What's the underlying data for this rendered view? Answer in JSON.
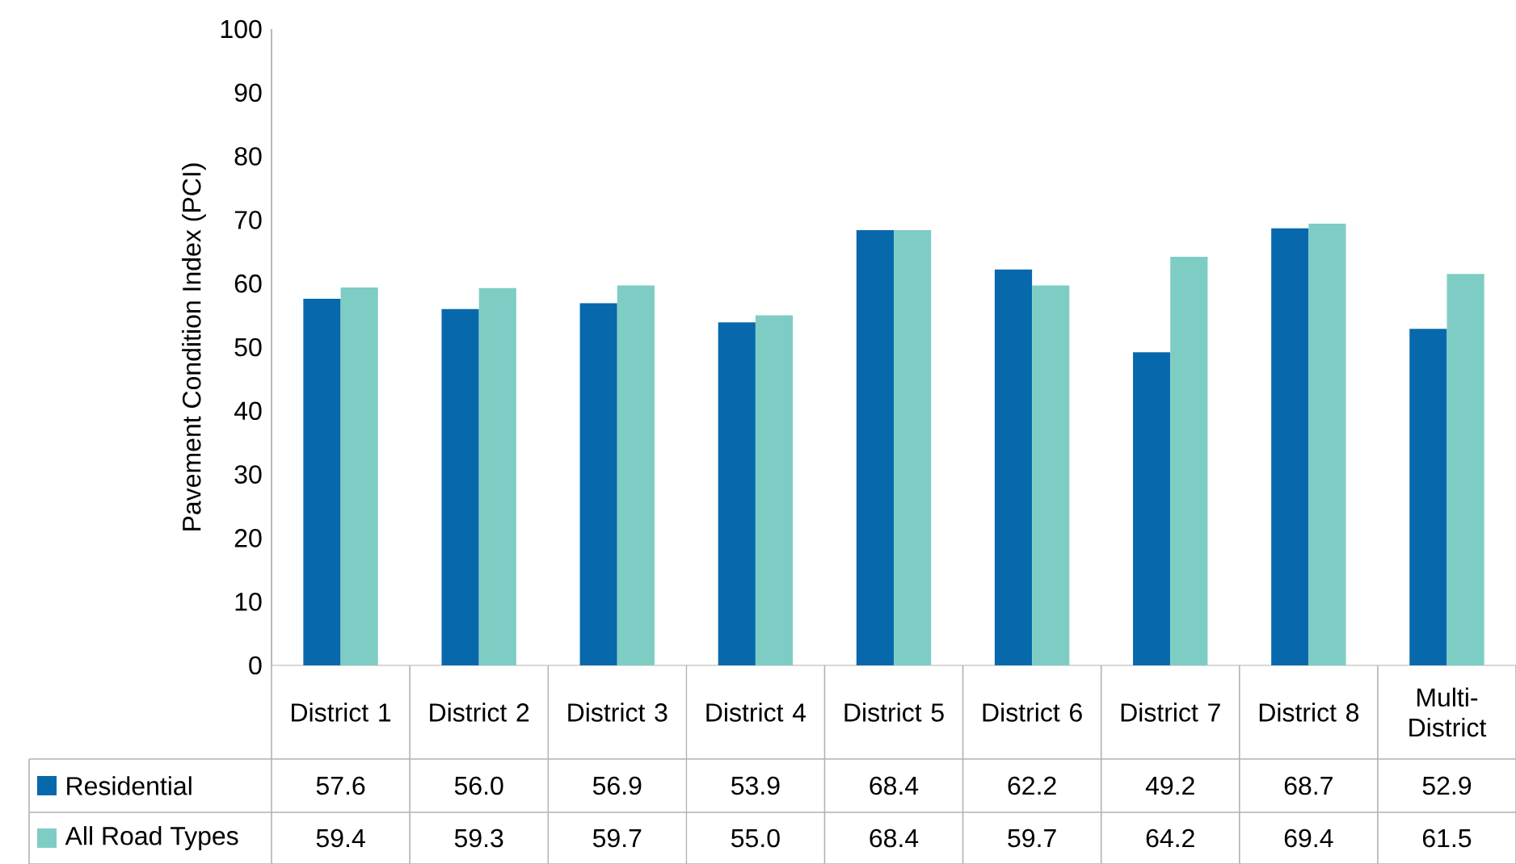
{
  "chart_data": {
    "type": "bar",
    "ylabel": "Pavement Condition Index (PCI)",
    "categories": [
      "District 1",
      "District 2",
      "District 3",
      "District 4",
      "District 5",
      "District 6",
      "District 7",
      "District 8",
      "Multi-District"
    ],
    "ylim": [
      0,
      100
    ],
    "yticks": [
      0,
      10,
      20,
      30,
      40,
      50,
      60,
      70,
      80,
      90,
      100
    ],
    "legend": "bottom left",
    "series": [
      {
        "name": "Residential",
        "color": "#0868ac",
        "values": [
          57.6,
          56.0,
          56.9,
          53.9,
          68.4,
          62.2,
          49.2,
          68.7,
          52.9
        ],
        "value_labels": [
          "57.6",
          "56.0",
          "56.9",
          "53.9",
          "68.4",
          "62.2",
          "49.2",
          "68.7",
          "52.9"
        ]
      },
      {
        "name": "All Road Types",
        "color": "#7ecdc4",
        "values": [
          59.4,
          59.3,
          59.7,
          55.0,
          68.4,
          59.7,
          64.2,
          69.4,
          61.5
        ],
        "value_labels": [
          "59.4",
          "59.3",
          "59.7",
          "55.0",
          "68.4",
          "59.7",
          "64.2",
          "69.4",
          "61.5"
        ]
      }
    ]
  }
}
